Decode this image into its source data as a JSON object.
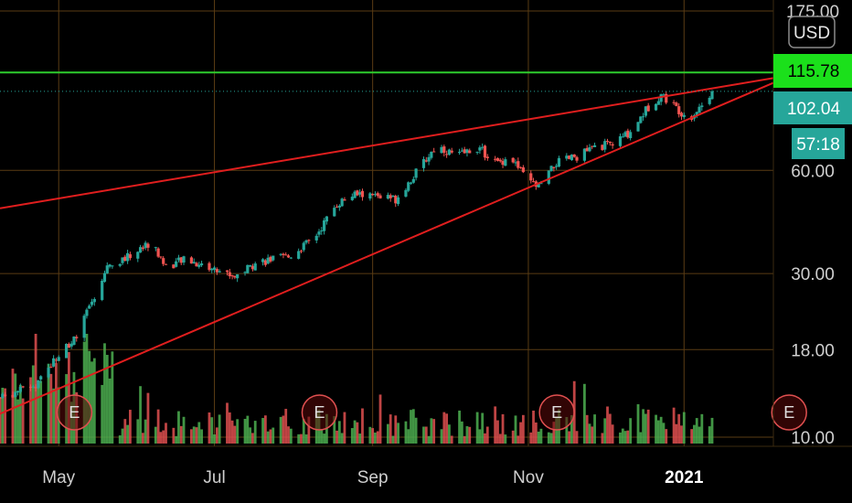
{
  "currency_button": "USD",
  "price_badges": {
    "resistance": "115.78",
    "last_price": "102.04",
    "countdown": "57:18"
  },
  "colors": {
    "up": "#26a69a",
    "down": "#ef5350",
    "vol_up": "#4caf50",
    "vol_down": "#e05050",
    "trendline": "#e01e1e",
    "resistance": "#2ecc2e",
    "grid": "#5a3c14",
    "last_badge": "#26a69a"
  },
  "chart_data": {
    "type": "candlestick",
    "scale": "log",
    "ylim": [
      10,
      175
    ],
    "y_ticks": [
      {
        "value": 175,
        "label": "175.00"
      },
      {
        "value": 60,
        "label": "60.00"
      },
      {
        "value": 30,
        "label": "30.00"
      },
      {
        "value": 18,
        "label": "18.00"
      },
      {
        "value": 10,
        "label": "10.00"
      }
    ],
    "x_ticks": [
      {
        "date": "2020-05-01",
        "label": "May"
      },
      {
        "date": "2020-07-01",
        "label": "Jul"
      },
      {
        "date": "2020-09-01",
        "label": "Sep"
      },
      {
        "date": "2020-11-01",
        "label": "Nov"
      },
      {
        "date": "2021-01-01",
        "label": "2021"
      }
    ],
    "xlim": [
      "2020-04-08",
      "2021-02-05"
    ],
    "grid": true,
    "price_anchors": [
      {
        "date": "2020-04-08",
        "close": 13.0
      },
      {
        "date": "2020-04-22",
        "close": 14.2
      },
      {
        "date": "2020-05-01",
        "close": 17.6
      },
      {
        "date": "2020-05-08",
        "close": 19.5
      },
      {
        "date": "2020-05-14",
        "close": 25.0
      },
      {
        "date": "2020-05-20",
        "close": 31.5
      },
      {
        "date": "2020-05-28",
        "close": 33.5
      },
      {
        "date": "2020-06-06",
        "close": 37.0
      },
      {
        "date": "2020-06-12",
        "close": 31.5
      },
      {
        "date": "2020-06-20",
        "close": 33.0
      },
      {
        "date": "2020-06-30",
        "close": 31.0
      },
      {
        "date": "2020-07-09",
        "close": 29.5
      },
      {
        "date": "2020-07-18",
        "close": 32.5
      },
      {
        "date": "2020-07-30",
        "close": 33.5
      },
      {
        "date": "2020-08-09",
        "close": 38.0
      },
      {
        "date": "2020-08-18",
        "close": 48.0
      },
      {
        "date": "2020-08-25",
        "close": 51.0
      },
      {
        "date": "2020-09-03",
        "close": 50.5
      },
      {
        "date": "2020-09-10",
        "close": 49.5
      },
      {
        "date": "2020-09-18",
        "close": 59.0
      },
      {
        "date": "2020-09-26",
        "close": 71.0
      },
      {
        "date": "2020-10-04",
        "close": 66.0
      },
      {
        "date": "2020-10-12",
        "close": 70.0
      },
      {
        "date": "2020-10-20",
        "close": 63.0
      },
      {
        "date": "2020-10-25",
        "close": 66.0
      },
      {
        "date": "2020-10-31",
        "close": 56.5
      },
      {
        "date": "2020-11-05",
        "close": 53.5
      },
      {
        "date": "2020-11-12",
        "close": 63.0
      },
      {
        "date": "2020-11-20",
        "close": 66.0
      },
      {
        "date": "2020-11-27",
        "close": 70.0
      },
      {
        "date": "2020-12-05",
        "close": 72.0
      },
      {
        "date": "2020-12-11",
        "close": 78.0
      },
      {
        "date": "2020-12-17",
        "close": 90.0
      },
      {
        "date": "2020-12-23",
        "close": 100.0
      },
      {
        "date": "2020-12-30",
        "close": 90.0
      },
      {
        "date": "2021-01-03",
        "close": 85.0
      },
      {
        "date": "2021-01-08",
        "close": 93.0
      },
      {
        "date": "2021-01-12",
        "close": 102.04
      }
    ],
    "lines": [
      {
        "name": "resistance",
        "type": "horizontal",
        "value": 115.78
      },
      {
        "name": "upper-trendline",
        "points": [
          {
            "date": "2020-04-08",
            "value": 46.5
          },
          {
            "date": "2021-02-05",
            "value": 111.5
          }
        ]
      },
      {
        "name": "lower-trendline",
        "points": [
          {
            "date": "2020-04-08",
            "value": 11.7
          },
          {
            "date": "2021-02-05",
            "value": 108.0
          }
        ]
      }
    ],
    "last_price_line": 102.04,
    "earnings_markers": [
      {
        "date": "2020-04-30",
        "label": "E"
      },
      {
        "date": "2020-08-04",
        "label": "E"
      },
      {
        "date": "2020-11-05",
        "label": "E"
      },
      {
        "date": "2021-02-04",
        "label": "E"
      }
    ]
  }
}
